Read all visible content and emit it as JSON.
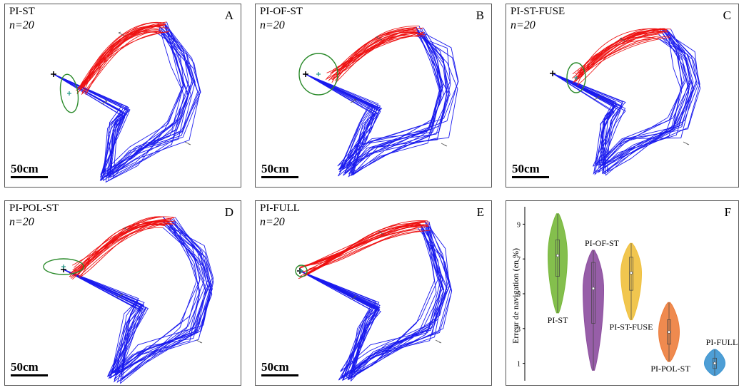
{
  "colors": {
    "outbound": "#1a1aee",
    "inbound": "#ee1111",
    "ellipse": "#2a8a2a"
  },
  "panels": [
    {
      "letter": "A",
      "title": "PI-ST",
      "n": "n=20",
      "scale": "50cm"
    },
    {
      "letter": "B",
      "title": "PI-OF-ST",
      "n": "n=20",
      "scale": "50cm"
    },
    {
      "letter": "C",
      "title": "PI-ST-FUSE",
      "n": "n=20",
      "scale": "50cm"
    },
    {
      "letter": "D",
      "title": "PI-POL-ST",
      "n": "n=20",
      "scale": "50cm"
    },
    {
      "letter": "E",
      "title": "PI-FULL",
      "n": "n=20",
      "scale": "50cm"
    }
  ],
  "chart_data": {
    "type": "violin",
    "letter": "F",
    "ylabel": "Erreur de navigation (en %)",
    "ylim": [
      0,
      10
    ],
    "yticks": [
      1,
      3,
      5,
      7,
      9
    ],
    "series": [
      {
        "name": "PI-ST",
        "color": "#77b83a",
        "min": 3.9,
        "q1": 6.0,
        "median": 7.2,
        "q3": 8.1,
        "max": 9.6
      },
      {
        "name": "PI-OF-ST",
        "color": "#8c4c9e",
        "min": 0.6,
        "q1": 3.3,
        "median": 5.3,
        "q3": 6.8,
        "max": 7.5
      },
      {
        "name": "PI-ST-FUSE",
        "color": "#f0c03c",
        "min": 3.5,
        "q1": 5.2,
        "median": 6.2,
        "q3": 7.1,
        "max": 7.9
      },
      {
        "name": "PI-POL-ST",
        "color": "#ed7d3c",
        "min": 1.1,
        "q1": 2.1,
        "median": 2.8,
        "q3": 3.5,
        "max": 4.5
      },
      {
        "name": "PI-FULL",
        "color": "#3b94d0",
        "min": 0.3,
        "q1": 0.7,
        "median": 1.0,
        "q3": 1.3,
        "max": 1.8
      }
    ]
  }
}
